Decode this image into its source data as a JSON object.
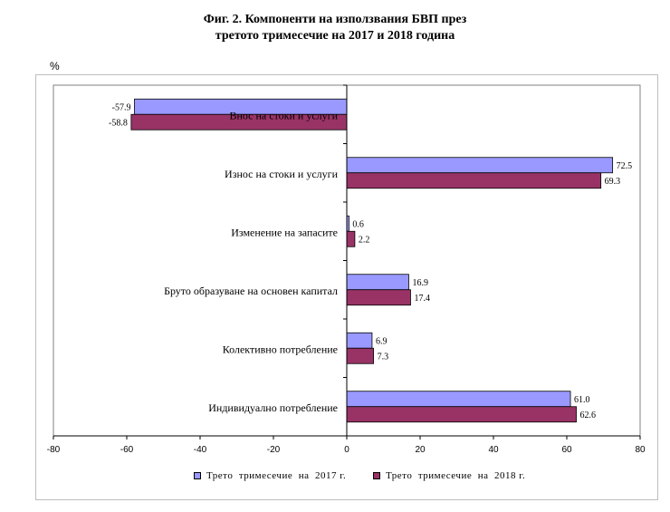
{
  "header": {
    "title_line1": "Фиг. 2. Компоненти на използвания БВП през",
    "title_line2": "третото тримесечие на 2017 и 2018 година",
    "unit_label": "%"
  },
  "chart_data": {
    "type": "bar",
    "orientation": "horizontal",
    "title": "Фиг. 2. Компоненти на използвания БВП през третото тримесечие на 2017 и 2018 година",
    "ylabel": "%",
    "categories": [
      "Внос на стоки и услуги",
      "Износ на стоки и услуги",
      "Изменение на запасите",
      "Бруто образуване на основен капитал",
      "Колективно потребление",
      "Индивидуално потребление"
    ],
    "series": [
      {
        "name": "Трето  тримесечие  на  2017 г.",
        "color": "#9999ff",
        "values": [
          -57.9,
          72.5,
          0.6,
          16.9,
          6.9,
          61.0
        ],
        "labels": [
          "-57.9",
          "72.5",
          "0.6",
          "16.9",
          "6.9",
          "61.0"
        ]
      },
      {
        "name": "Трето  тримесечие  на  2018 г.",
        "color": "#993366",
        "values": [
          -58.8,
          69.3,
          2.2,
          17.4,
          7.3,
          62.6
        ],
        "labels": [
          "-58.8",
          "69.3",
          "2.2",
          "17.4",
          "7.3",
          "62.6"
        ]
      }
    ],
    "xlim": [
      -80,
      80
    ],
    "xticks": [
      -80,
      -60,
      -40,
      -20,
      0,
      20,
      40,
      60,
      80
    ],
    "grid": false,
    "legend_position": "bottom"
  }
}
